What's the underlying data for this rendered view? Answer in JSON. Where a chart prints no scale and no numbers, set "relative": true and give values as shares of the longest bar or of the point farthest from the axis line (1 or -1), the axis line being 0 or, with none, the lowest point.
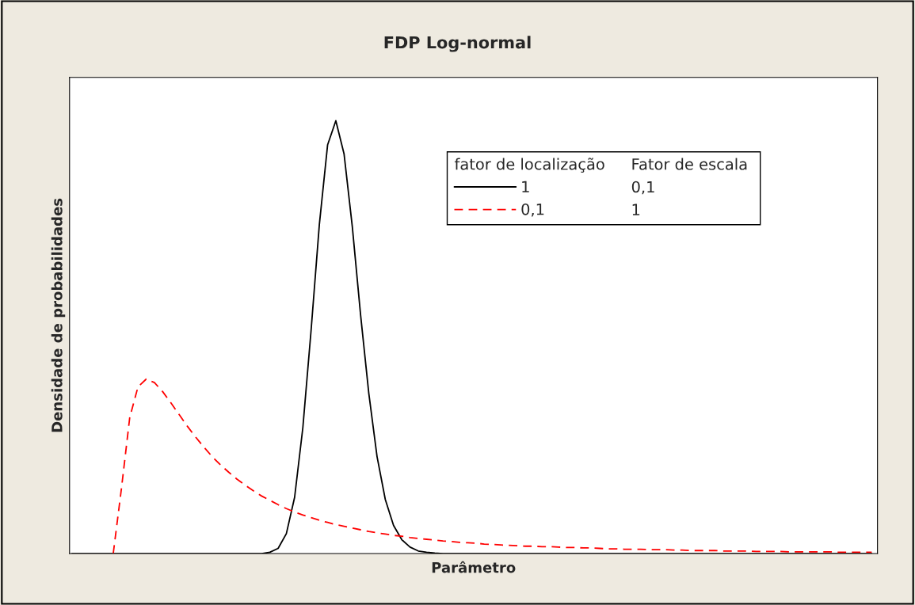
{
  "chart_data": {
    "type": "line",
    "title": "FDP Log-normal",
    "xlabel": "Parâmetro",
    "ylabel": "Densidade de probabilidades",
    "relative": true,
    "legend": "top right",
    "legend_title": "fator de localização",
    "grid": false,
    "annotations": [
      "Fator de escala",
      "0,1",
      "1"
    ],
    "categories": [
      null,
      null,
      null,
      null,
      null,
      null,
      null,
      null,
      null,
      null,
      null,
      null,
      null,
      null,
      null,
      null,
      null,
      null,
      null,
      null,
      null,
      null,
      null,
      null,
      null,
      null,
      null,
      null,
      null,
      null,
      null,
      null,
      null,
      null,
      null,
      null,
      null,
      null,
      null,
      null,
      null,
      null,
      null,
      null,
      null,
      null,
      null,
      null,
      null,
      null,
      null,
      null,
      null,
      null,
      null,
      null,
      null,
      null,
      null,
      null,
      null,
      null,
      null,
      null,
      null,
      null,
      null,
      null,
      null,
      null,
      null,
      null,
      null,
      null,
      null,
      null,
      null,
      null,
      null,
      null,
      null,
      null,
      null,
      null,
      null,
      null,
      null,
      null,
      null,
      null,
      null,
      null,
      null,
      null,
      null,
      null,
      null,
      null
    ],
    "series": [
      {
        "name": "1",
        "color": "#000000",
        "line_style": "solid",
        "values": [
          0,
          0,
          0,
          0,
          0,
          0,
          0,
          0,
          0,
          0,
          0,
          0,
          0,
          0,
          0,
          0,
          0,
          0,
          0,
          0,
          0,
          0,
          0,
          0,
          0.003,
          0.012,
          0.046,
          0.13,
          0.291,
          0.516,
          0.76,
          0.944,
          1,
          0.923,
          0.755,
          0.552,
          0.37,
          0.224,
          0.125,
          0.065,
          0.032,
          0.015,
          0.006,
          0.003,
          0.001,
          0,
          0,
          0,
          0,
          0,
          0,
          0,
          0,
          0,
          0,
          0,
          0,
          0,
          0,
          0,
          0,
          0,
          0,
          0,
          0,
          0,
          0,
          0,
          0,
          0,
          0,
          0,
          0,
          0,
          0,
          0,
          0,
          0,
          0,
          0,
          0,
          0,
          0,
          0,
          0,
          0,
          0,
          0,
          0,
          0,
          0,
          0,
          0,
          0,
          0,
          0,
          0,
          0
        ]
      },
      {
        "name": "0,1",
        "color": "#ff0000",
        "line_style": "dashed",
        "values": [
          null,
          null,
          null,
          null,
          null,
          0,
          0.151,
          0.314,
          0.385,
          0.403,
          0.395,
          0.374,
          0.348,
          0.321,
          0.294,
          0.269,
          0.246,
          0.224,
          0.205,
          0.188,
          0.172,
          0.158,
          0.145,
          0.133,
          0.123,
          0.113,
          0.104,
          0.096,
          0.089,
          0.083,
          0.077,
          0.072,
          0.067,
          0.063,
          0.059,
          0.055,
          0.051,
          0.048,
          0.045,
          0.042,
          0.04,
          0.037,
          0.035,
          0.033,
          0.031,
          0.029,
          0.028,
          0.026,
          0.025,
          0.024,
          0.022,
          0.021,
          0.02,
          0.019,
          0.018,
          0.017,
          0.017,
          0.016,
          0.016,
          0.015,
          0.014,
          0.014,
          0.013,
          0.013,
          0.012,
          0.011,
          0.011,
          0.01,
          0.01,
          0.01,
          0.009,
          0.009,
          0.009,
          0.008,
          0.008,
          0.007,
          0.007,
          0.007,
          0.007,
          0.006,
          0.006,
          0.006,
          0.006,
          0.005,
          0.005,
          0.005,
          0.005,
          0.004,
          0.004,
          0.004,
          0.004,
          0.004,
          0.004,
          0.003,
          0.003,
          0.003,
          0.003,
          0.003
        ]
      }
    ]
  }
}
